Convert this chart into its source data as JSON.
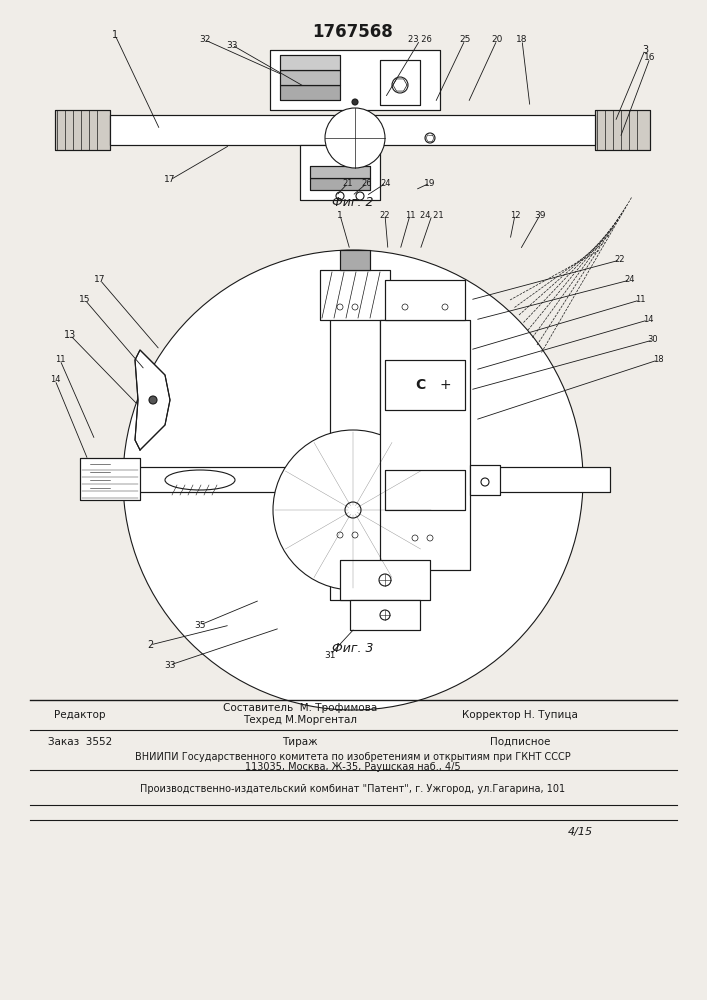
{
  "title": "1767568",
  "fig2_label": "Фиг. 2",
  "fig3_label": "Фиг. 3",
  "footer_line1_left": "Редактор",
  "footer_line1_center": "Составитель  М. Трофимова",
  "footer_line1_center2": "Техред М.Моргентал",
  "footer_line1_right": "Корректор Н. Тупица",
  "footer_line2_left": "Заказ  3552",
  "footer_line2_center": "Тираж",
  "footer_line2_right": "Подписное",
  "footer_line3": "ВНИИПИ Государственного комитета по изобретениям и открытиям при ГКНТ СССР",
  "footer_line4": "113035, Москва, Ж-35, Раушская наб., 4/5",
  "footer_line5": "Производственно-издательский комбинат \"Патент\", г. Ужгород, ул.Гагарина, 101",
  "signature": "4/15",
  "bg_color": "#f0ede8",
  "line_color": "#1a1a1a",
  "font_size_small": 7,
  "font_size_medium": 8,
  "font_size_large": 10
}
